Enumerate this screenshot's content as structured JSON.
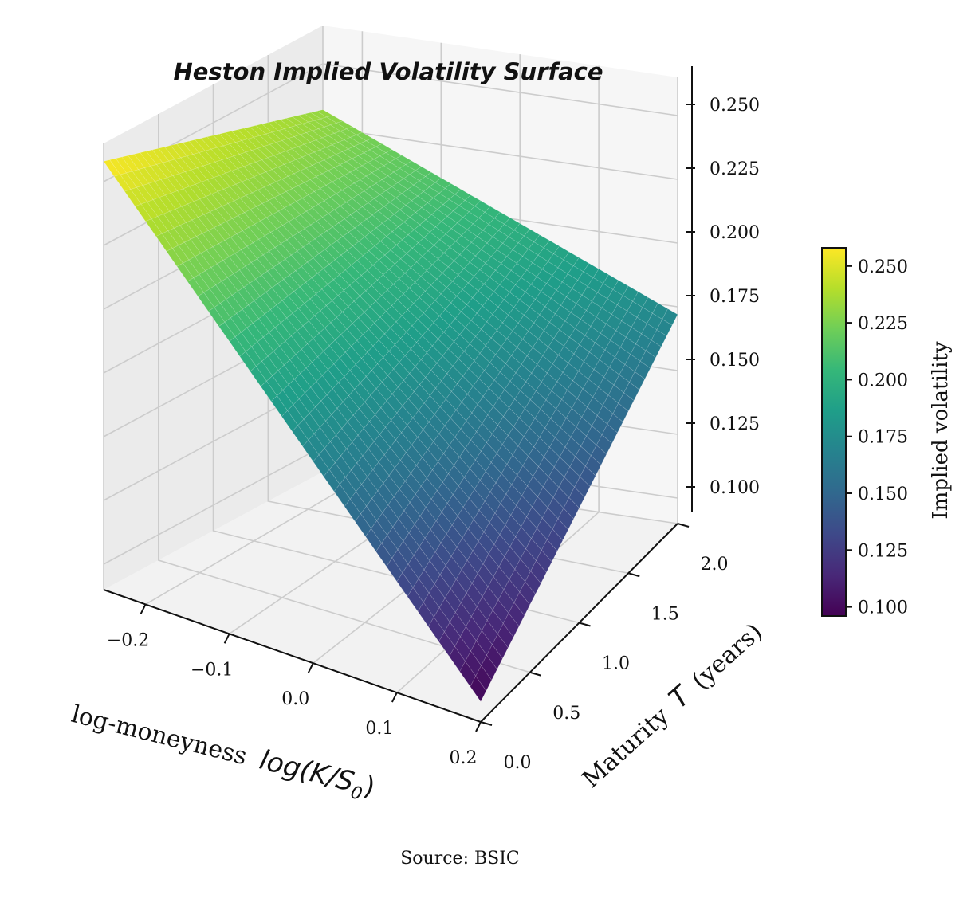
{
  "chart_data": {
    "type": "surface3d",
    "title": "Heston Implied Volatility Surface",
    "xlabel_prefix": "log-moneyness",
    "xlabel_math": "log(K/S",
    "xlabel_math_sub": "0",
    "xlabel_math_close": ")",
    "ylabel_prefix": "Maturity",
    "ylabel_math": "T",
    "ylabel_suffix": "(years)",
    "zlabel": "",
    "colorbar_label": "Implied volatility",
    "source": "Source: BSIC",
    "x_range": [
      -0.25,
      0.2
    ],
    "y_range": [
      0.0,
      2.0
    ],
    "z_range": [
      0.09,
      0.265
    ],
    "x_ticks": [
      -0.2,
      -0.1,
      0.0,
      0.1,
      0.2
    ],
    "x_tick_labels": [
      "−0.2",
      "−0.1",
      "0.0",
      "0.1",
      "0.2"
    ],
    "y_ticks": [
      0.0,
      0.5,
      1.0,
      1.5,
      2.0
    ],
    "y_tick_labels": [
      "0.0",
      "0.5",
      "1.0",
      "1.5",
      "2.0"
    ],
    "z_ticks": [
      0.1,
      0.125,
      0.15,
      0.175,
      0.2,
      0.225,
      0.25
    ],
    "z_tick_labels": [
      "0.100",
      "0.125",
      "0.150",
      "0.175",
      "0.200",
      "0.225",
      "0.250"
    ],
    "colorbar_ticks": [
      0.1,
      0.125,
      0.15,
      0.175,
      0.2,
      0.225,
      0.25
    ],
    "colorbar_tick_labels": [
      "0.100",
      "0.125",
      "0.150",
      "0.175",
      "0.200",
      "0.225",
      "0.250"
    ],
    "colorbar_range": [
      0.096,
      0.258
    ],
    "colormap": "viridis",
    "colormap_stops": [
      "#440154",
      "#482878",
      "#3e4989",
      "#31688e",
      "#26828e",
      "#1f9e89",
      "#35b779",
      "#6ece58",
      "#b5de2b",
      "#fde725"
    ],
    "surface_corner_values": {
      "x_min_T_0": 0.258,
      "x_min_T_2": 0.232,
      "x_max_T_0": 0.098,
      "x_max_T_2": 0.172
    },
    "grid": true
  }
}
